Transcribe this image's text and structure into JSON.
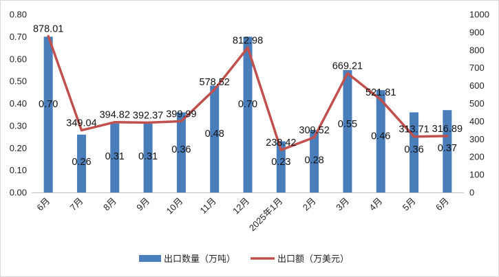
{
  "chart_data": {
    "type": "bar+line",
    "categories": [
      "6月",
      "7月",
      "8月",
      "9月",
      "10月",
      "11月",
      "12月",
      "2025年1月",
      "2月",
      "3月",
      "4月",
      "5月",
      "6月"
    ],
    "series": [
      {
        "name": "出口数量（万吨）",
        "type": "bar",
        "axis": "left",
        "color": "#4a7ebb",
        "values": [
          0.7,
          0.26,
          0.31,
          0.31,
          0.36,
          0.48,
          0.7,
          0.23,
          0.28,
          0.55,
          0.46,
          0.36,
          0.37
        ],
        "labels": [
          "0.70",
          "0.26",
          "0.31",
          "0.31",
          "0.36",
          "0.48",
          "0.70",
          "0.23",
          "0.28",
          "0.55",
          "0.46",
          "0.36",
          "0.37"
        ]
      },
      {
        "name": "出口额（万美元）",
        "type": "line",
        "axis": "right",
        "color": "#c0504d",
        "values": [
          878.01,
          349.04,
          394.82,
          392.37,
          399.99,
          578.52,
          812.98,
          238.42,
          309.52,
          669.21,
          521.81,
          313.71,
          316.89
        ],
        "labels": [
          "878.01",
          "349.04",
          "394.82",
          "392.37",
          "399.99",
          "578.52",
          "812.98",
          "238.42",
          "309.52",
          "669.21",
          "521.81",
          "313.71",
          "316.89"
        ]
      }
    ],
    "y_left": {
      "min": 0,
      "max": 0.8,
      "ticks": [
        "0.00",
        "0.10",
        "0.20",
        "0.30",
        "0.40",
        "0.50",
        "0.60",
        "0.70",
        "0.80"
      ]
    },
    "y_right": {
      "min": 0,
      "max": 1000,
      "ticks": [
        "0",
        "100",
        "200",
        "300",
        "400",
        "500",
        "600",
        "700",
        "800",
        "900",
        "1000"
      ]
    },
    "grid": false,
    "legend_position": "bottom"
  }
}
